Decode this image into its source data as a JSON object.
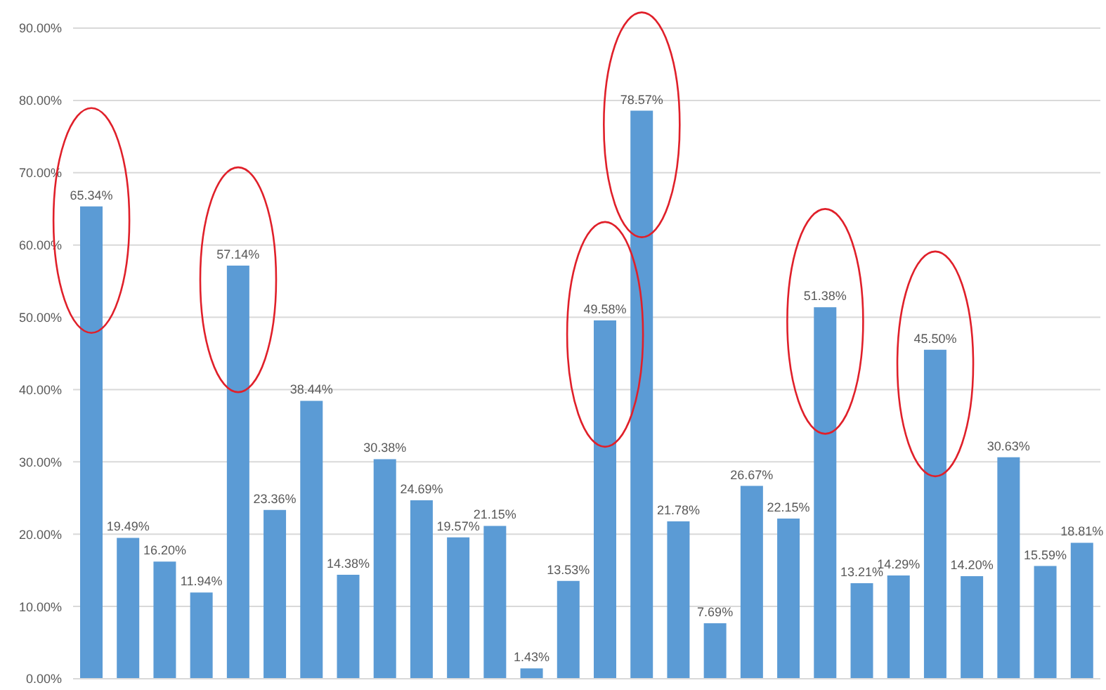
{
  "chart_data": {
    "type": "bar",
    "categories": [
      null,
      null,
      null,
      null,
      null,
      null,
      null,
      null,
      null,
      null,
      null,
      null,
      null,
      null,
      null,
      null,
      null,
      null,
      null,
      null,
      null,
      null,
      null,
      null,
      null,
      null,
      null,
      null
    ],
    "values": [
      65.34,
      19.49,
      16.2,
      11.94,
      57.14,
      23.36,
      38.44,
      14.38,
      30.38,
      24.69,
      19.57,
      21.15,
      1.43,
      13.53,
      49.58,
      78.57,
      21.78,
      7.69,
      26.67,
      22.15,
      51.38,
      13.21,
      14.29,
      45.5,
      14.2,
      30.63,
      15.59,
      18.81
    ],
    "value_labels": [
      "65.34%",
      "19.49%",
      "16.20%",
      "11.94%",
      "57.14%",
      "23.36%",
      "38.44%",
      "14.38%",
      "30.38%",
      "24.69%",
      "19.57%",
      "21.15%",
      "1.43%",
      "13.53%",
      "49.58%",
      "78.57%",
      "21.78%",
      "7.69%",
      "26.67%",
      "22.15%",
      "51.38%",
      "13.21%",
      "14.29%",
      "45.50%",
      "14.20%",
      "30.63%",
      "15.59%",
      "18.81%"
    ],
    "color": "#5b9bd5",
    "ylim": [
      0,
      90
    ],
    "yticks": [
      {
        "value": 0,
        "label": "0.00%"
      },
      {
        "value": 10,
        "label": "10.00%"
      },
      {
        "value": 20,
        "label": "20.00%"
      },
      {
        "value": 30,
        "label": "30.00%"
      },
      {
        "value": 40,
        "label": "40.00%"
      },
      {
        "value": 50,
        "label": "50.00%"
      },
      {
        "value": 60,
        "label": "60.00%"
      },
      {
        "value": 70,
        "label": "70.00%"
      },
      {
        "value": 80,
        "label": "80.00%"
      },
      {
        "value": 90,
        "label": "90.00%"
      }
    ],
    "grid": "y",
    "legend": false
  }
}
